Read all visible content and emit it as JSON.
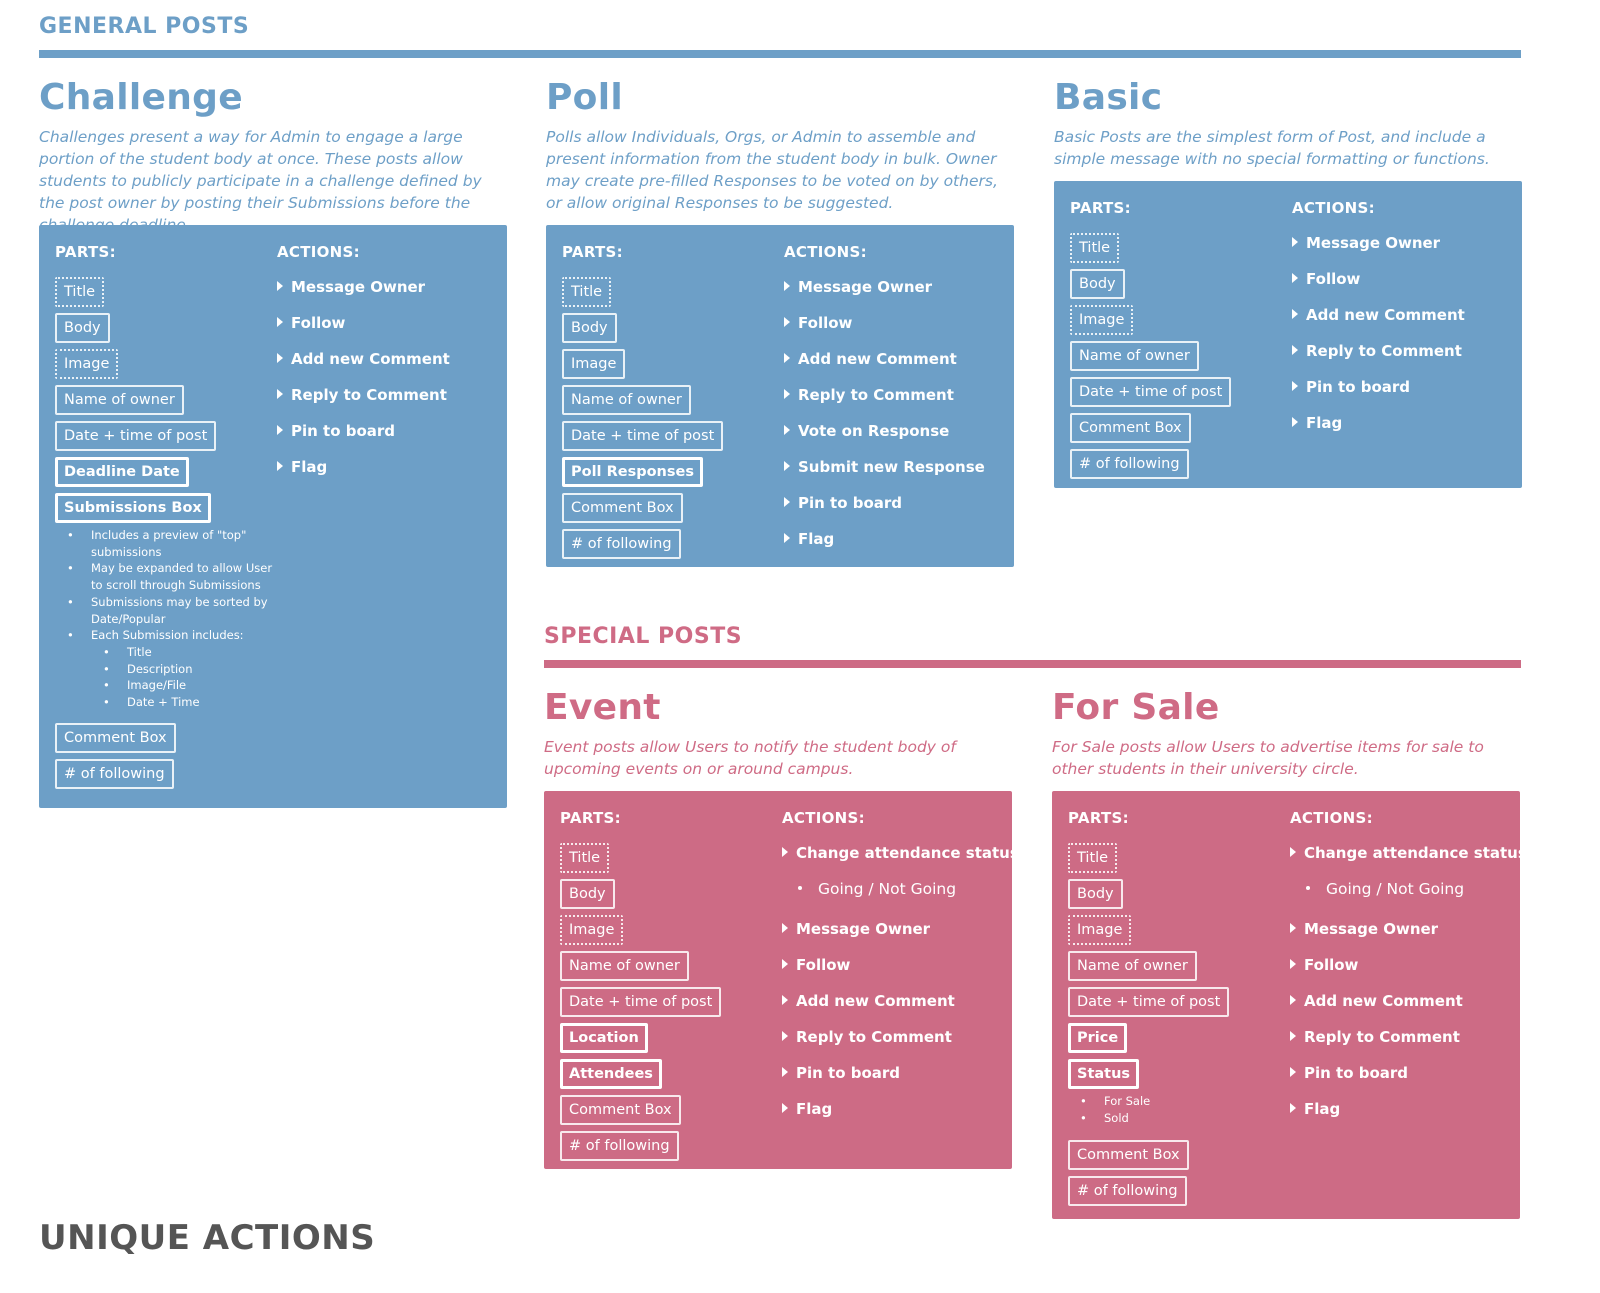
{
  "general_header": "GENERAL POSTS",
  "special_header": "SPECIAL POSTS",
  "unique_header": "UNIQUE ACTIONS",
  "colors": {
    "general": "#6d9fc7",
    "special": "#cd6b85",
    "unique": "#555555"
  },
  "labels": {
    "parts": "PARTS:",
    "actions": "ACTIONS:"
  },
  "challenge": {
    "title": "Challenge",
    "desc": "Challenges present a way for Admin to engage a large portion of the student body at once. These posts allow students to publicly participate in a challenge defined by the post owner by posting their Submissions before the challenge deadline.",
    "parts": [
      "Title",
      "Body",
      "Image",
      "Name of owner",
      "Date + time of post",
      "Deadline Date",
      "Submissions Box",
      "Comment Box",
      "# of following"
    ],
    "notes": [
      "Includes a preview of \"top\" submissions",
      "May be expanded to allow User to scroll through Submissions",
      "Submissions may be sorted by Date/Popular",
      "Each Submission includes:"
    ],
    "subnotes": [
      "Title",
      "Description",
      "Image/File",
      "Date + Time"
    ],
    "actions": [
      "Message Owner",
      "Follow",
      "Add new Comment",
      "Reply to Comment",
      "Pin to board",
      "Flag"
    ]
  },
  "poll": {
    "title": "Poll",
    "desc": "Polls allow Individuals, Orgs, or Admin to assemble and present information from the student body in bulk. Owner may create pre-filled Responses to be voted on by others, or allow original Responses to be suggested.",
    "parts": [
      "Title",
      "Body",
      "Image",
      "Name of owner",
      "Date + time of post",
      "Poll Responses",
      "Comment Box",
      "# of following"
    ],
    "actions": [
      "Message Owner",
      "Follow",
      "Add new Comment",
      "Reply to Comment",
      "Vote on Response",
      "Submit new Response",
      "Pin to board",
      "Flag"
    ]
  },
  "basic": {
    "title": "Basic",
    "desc": "Basic Posts are the simplest form of Post, and include a simple message with no special formatting or functions.",
    "parts": [
      "Title",
      "Body",
      "Image",
      "Name of owner",
      "Date + time of post",
      "Comment Box",
      "# of following"
    ],
    "actions": [
      "Message Owner",
      "Follow",
      "Add new Comment",
      "Reply to Comment",
      "Pin to board",
      "Flag"
    ]
  },
  "event": {
    "title": "Event",
    "desc": "Event posts allow Users to notify the student body of upcoming events on or around campus.",
    "parts": [
      "Title",
      "Body",
      "Image",
      "Name of owner",
      "Date + time of post",
      "Location",
      "Attendees",
      "Comment Box",
      "# of following"
    ],
    "actions": [
      "Change attendance status",
      "Going / Not Going",
      "Message Owner",
      "Follow",
      "Add new Comment",
      "Reply to Comment",
      "Pin to board",
      "Flag"
    ]
  },
  "forsale": {
    "title": "For Sale",
    "desc": "For Sale posts allow Users to advertise items for sale to other students in their university circle.",
    "parts": [
      "Title",
      "Body",
      "Image",
      "Name of owner",
      "Date + time of post",
      "Price",
      "Status",
      "Comment Box",
      "# of following"
    ],
    "status_notes": [
      "For Sale",
      "Sold"
    ],
    "actions": [
      "Change attendance status",
      "Going / Not Going",
      "Message Owner",
      "Follow",
      "Add new Comment",
      "Reply to Comment",
      "Pin to board",
      "Flag"
    ]
  }
}
